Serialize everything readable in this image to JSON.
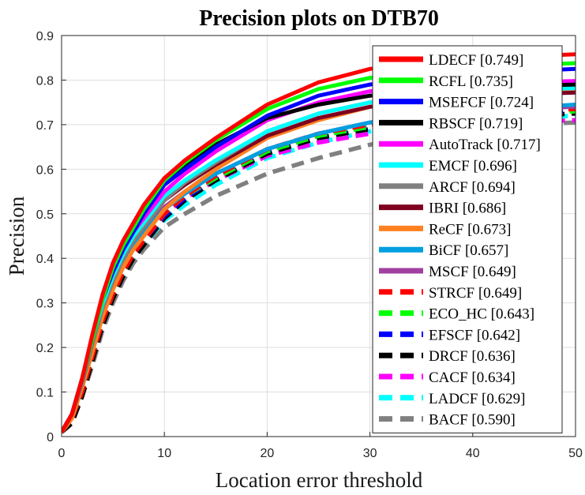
{
  "chart_data": {
    "type": "line",
    "title": "Precision plots on DTB70",
    "xlabel": "Location error threshold",
    "ylabel": "Precision",
    "xlim": [
      0,
      50
    ],
    "ylim": [
      0,
      0.9
    ],
    "xticks": [
      0,
      10,
      20,
      30,
      40,
      50
    ],
    "yticks": [
      0,
      0.1,
      0.2,
      0.3,
      0.4,
      0.5,
      0.6,
      0.7,
      0.8,
      0.9
    ],
    "grid": true,
    "legend_position": "right",
    "x": [
      0,
      1,
      2,
      3,
      4,
      5,
      6,
      7,
      8,
      10,
      12,
      15,
      20,
      25,
      30,
      35,
      40,
      45,
      50
    ],
    "series": [
      {
        "name": "LDECF [0.749]",
        "color": "#ff0000",
        "style": "solid",
        "values": [
          0.01,
          0.05,
          0.13,
          0.23,
          0.32,
          0.39,
          0.44,
          0.48,
          0.52,
          0.58,
          0.62,
          0.67,
          0.745,
          0.795,
          0.825,
          0.84,
          0.848,
          0.853,
          0.858
        ]
      },
      {
        "name": "RCFL [0.735]",
        "color": "#00ff00",
        "style": "solid",
        "values": [
          0.01,
          0.05,
          0.13,
          0.22,
          0.31,
          0.38,
          0.43,
          0.47,
          0.51,
          0.575,
          0.615,
          0.665,
          0.735,
          0.78,
          0.805,
          0.82,
          0.828,
          0.833,
          0.838
        ]
      },
      {
        "name": "MSEFCF [0.724]",
        "color": "#0000ff",
        "style": "solid",
        "values": [
          0.01,
          0.05,
          0.13,
          0.22,
          0.31,
          0.37,
          0.42,
          0.46,
          0.5,
          0.565,
          0.6,
          0.65,
          0.72,
          0.765,
          0.79,
          0.805,
          0.815,
          0.82,
          0.825
        ]
      },
      {
        "name": "RBSCF [0.719]",
        "color": "#000000",
        "style": "solid",
        "values": [
          0.01,
          0.05,
          0.13,
          0.22,
          0.31,
          0.37,
          0.42,
          0.46,
          0.5,
          0.57,
          0.61,
          0.655,
          0.715,
          0.745,
          0.765,
          0.775,
          0.782,
          0.787,
          0.79
        ]
      },
      {
        "name": "AutoTrack [0.717]",
        "color": "#ff00ff",
        "style": "solid",
        "values": [
          0.01,
          0.05,
          0.13,
          0.22,
          0.31,
          0.37,
          0.42,
          0.46,
          0.49,
          0.55,
          0.59,
          0.64,
          0.71,
          0.75,
          0.775,
          0.785,
          0.79,
          0.795,
          0.798
        ]
      },
      {
        "name": "EMCF [0.696]",
        "color": "#00ffff",
        "style": "solid",
        "values": [
          0.01,
          0.05,
          0.13,
          0.22,
          0.3,
          0.36,
          0.41,
          0.45,
          0.48,
          0.54,
          0.575,
          0.62,
          0.685,
          0.725,
          0.75,
          0.765,
          0.772,
          0.778,
          0.782
        ]
      },
      {
        "name": "ARCF [0.694]",
        "color": "#808080",
        "style": "solid",
        "values": [
          0.01,
          0.05,
          0.12,
          0.21,
          0.29,
          0.35,
          0.4,
          0.44,
          0.47,
          0.53,
          0.57,
          0.615,
          0.685,
          0.725,
          0.75,
          0.765,
          0.775,
          0.78,
          0.785
        ]
      },
      {
        "name": "IBRI [0.686]",
        "color": "#7f0020",
        "style": "solid",
        "values": [
          0.01,
          0.05,
          0.12,
          0.21,
          0.29,
          0.35,
          0.4,
          0.44,
          0.47,
          0.53,
          0.565,
          0.61,
          0.675,
          0.715,
          0.74,
          0.755,
          0.762,
          0.768,
          0.772
        ]
      },
      {
        "name": "ReCF [0.673]",
        "color": "#ff8020",
        "style": "solid",
        "values": [
          0.01,
          0.04,
          0.11,
          0.19,
          0.27,
          0.33,
          0.38,
          0.42,
          0.45,
          0.51,
          0.55,
          0.6,
          0.67,
          0.71,
          0.74,
          0.755,
          0.765,
          0.77,
          0.775
        ]
      },
      {
        "name": "BiCF [0.657]",
        "color": "#00a0e0",
        "style": "solid",
        "values": [
          0.01,
          0.05,
          0.12,
          0.21,
          0.29,
          0.35,
          0.39,
          0.43,
          0.46,
          0.51,
          0.545,
          0.59,
          0.645,
          0.68,
          0.705,
          0.72,
          0.73,
          0.738,
          0.745
        ]
      },
      {
        "name": "MSCF [0.649]",
        "color": "#a040a0",
        "style": "solid",
        "values": [
          0.01,
          0.05,
          0.12,
          0.21,
          0.29,
          0.34,
          0.39,
          0.43,
          0.46,
          0.515,
          0.55,
          0.59,
          0.645,
          0.68,
          0.705,
          0.72,
          0.728,
          0.735,
          0.74
        ]
      },
      {
        "name": "STRCF [0.649]",
        "color": "#ff0000",
        "style": "dashed",
        "values": [
          0.01,
          0.04,
          0.1,
          0.18,
          0.26,
          0.32,
          0.37,
          0.41,
          0.44,
          0.5,
          0.54,
          0.585,
          0.645,
          0.68,
          0.7,
          0.715,
          0.725,
          0.73,
          0.735
        ]
      },
      {
        "name": "ECO_HC [0.643]",
        "color": "#00ff00",
        "style": "dashed",
        "values": [
          0.01,
          0.04,
          0.1,
          0.18,
          0.26,
          0.32,
          0.37,
          0.41,
          0.44,
          0.5,
          0.54,
          0.58,
          0.64,
          0.675,
          0.695,
          0.71,
          0.72,
          0.725,
          0.73
        ]
      },
      {
        "name": "EFSCF [0.642]",
        "color": "#0000ff",
        "style": "dashed",
        "values": [
          0.01,
          0.04,
          0.1,
          0.18,
          0.26,
          0.32,
          0.37,
          0.41,
          0.44,
          0.495,
          0.535,
          0.58,
          0.64,
          0.675,
          0.695,
          0.71,
          0.72,
          0.725,
          0.73
        ]
      },
      {
        "name": "DRCF [0.636]",
        "color": "#000000",
        "style": "dashed",
        "values": [
          0.01,
          0.03,
          0.09,
          0.17,
          0.25,
          0.31,
          0.36,
          0.4,
          0.43,
          0.49,
          0.53,
          0.575,
          0.635,
          0.67,
          0.69,
          0.705,
          0.715,
          0.72,
          0.725
        ]
      },
      {
        "name": "CACF [0.634]",
        "color": "#ff00ff",
        "style": "dashed",
        "values": [
          0.01,
          0.05,
          0.12,
          0.21,
          0.29,
          0.34,
          0.38,
          0.42,
          0.45,
          0.5,
          0.535,
          0.575,
          0.63,
          0.66,
          0.68,
          0.69,
          0.7,
          0.705,
          0.71
        ]
      },
      {
        "name": "LADCF [0.629]",
        "color": "#00ffff",
        "style": "dashed",
        "values": [
          0.01,
          0.04,
          0.11,
          0.2,
          0.27,
          0.32,
          0.36,
          0.4,
          0.43,
          0.485,
          0.52,
          0.565,
          0.625,
          0.66,
          0.685,
          0.7,
          0.71,
          0.715,
          0.72
        ]
      },
      {
        "name": "BACF [0.590]",
        "color": "#808080",
        "style": "dashed",
        "values": [
          0.01,
          0.03,
          0.09,
          0.16,
          0.24,
          0.3,
          0.35,
          0.39,
          0.42,
          0.47,
          0.5,
          0.54,
          0.59,
          0.625,
          0.655,
          0.675,
          0.69,
          0.7,
          0.705
        ]
      }
    ]
  }
}
